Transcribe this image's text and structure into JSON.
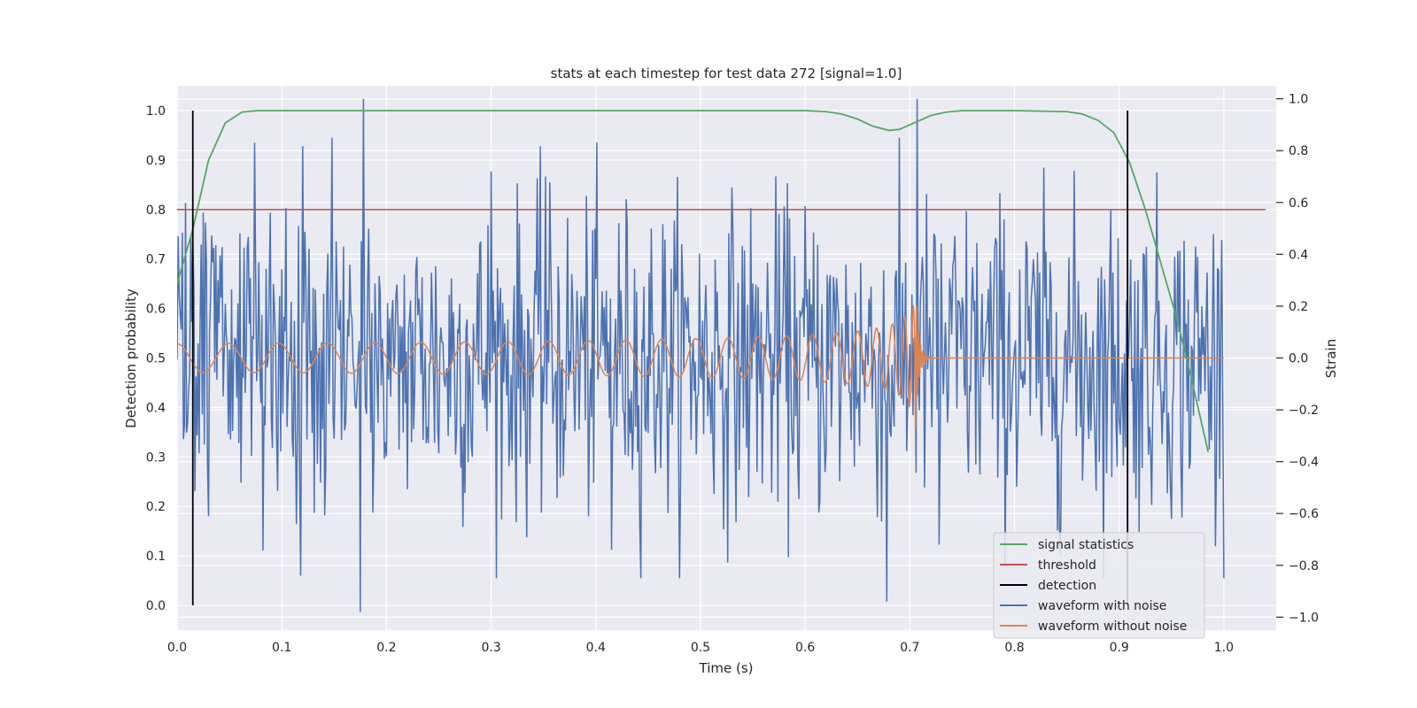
{
  "chart_data": {
    "type": "line",
    "title": "stats at each timestep for test data 272 [signal=1.0]",
    "xlabel": "Time (s)",
    "ylabel": "Detection probability",
    "y2label": "Strain",
    "xlim": [
      0.0,
      1.05
    ],
    "ylim": [
      -0.05,
      1.05
    ],
    "y2lim": [
      -1.05,
      1.05
    ],
    "xticks": [
      "0.0",
      "0.1",
      "0.2",
      "0.3",
      "0.4",
      "0.5",
      "0.6",
      "0.7",
      "0.8",
      "0.9",
      "1.0"
    ],
    "xtick_values": [
      0.0,
      0.1,
      0.2,
      0.3,
      0.4,
      0.5,
      0.6,
      0.7,
      0.8,
      0.9,
      1.0
    ],
    "yticks": [
      "0.0",
      "0.1",
      "0.2",
      "0.3",
      "0.4",
      "0.5",
      "0.6",
      "0.7",
      "0.8",
      "0.9",
      "1.0"
    ],
    "ytick_values": [
      0.0,
      0.1,
      0.2,
      0.3,
      0.4,
      0.5,
      0.6,
      0.7,
      0.8,
      0.9,
      1.0
    ],
    "y2ticks": [
      "−1.0",
      "−0.8",
      "−0.6",
      "−0.4",
      "−0.2",
      "0.0",
      "0.2",
      "0.4",
      "0.6",
      "0.8",
      "1.0"
    ],
    "y2tick_values": [
      -1.0,
      -0.8,
      -0.6,
      -0.4,
      -0.2,
      0.0,
      0.2,
      0.4,
      0.6,
      0.8,
      1.0
    ],
    "grid": true,
    "legend_position": "lower-right",
    "colors": {
      "signal": "#55a868",
      "threshold": "#c44e52",
      "detection": "#000000",
      "noise": "#4c72b0",
      "clean": "#dd8452",
      "axes_bg": "#eaeaf2",
      "grid": "#ffffff"
    },
    "series": [
      {
        "name": "signal statistics",
        "axis": "left",
        "x": [
          0.0,
          0.015,
          0.03,
          0.046,
          0.062,
          0.077,
          0.1,
          0.2,
          0.3,
          0.4,
          0.5,
          0.6,
          0.62,
          0.635,
          0.65,
          0.665,
          0.68,
          0.69,
          0.705,
          0.72,
          0.735,
          0.75,
          0.77,
          0.8,
          0.85,
          0.865,
          0.88,
          0.895,
          0.91,
          0.925,
          0.94,
          0.955,
          0.97,
          0.985
        ],
        "y": [
          0.65,
          0.76,
          0.9,
          0.975,
          0.997,
          1.0,
          1.0,
          1.0,
          1.0,
          1.0,
          1.0,
          1.0,
          0.998,
          0.993,
          0.983,
          0.968,
          0.96,
          0.962,
          0.976,
          0.99,
          0.997,
          1.0,
          1.0,
          1.0,
          0.998,
          0.993,
          0.98,
          0.955,
          0.895,
          0.8,
          0.69,
          0.58,
          0.45,
          0.31
        ]
      },
      {
        "name": "threshold",
        "axis": "left",
        "x": [
          0.0,
          1.04
        ],
        "y": [
          0.8,
          0.8
        ]
      },
      {
        "name": "detection",
        "axis": "left",
        "type": "vlines",
        "x": [
          0.015,
          0.908
        ],
        "ymin": 0.0,
        "ymax": 1.0
      },
      {
        "name": "waveform with noise",
        "axis": "right",
        "x_start": 0.0,
        "x_end": 1.0,
        "points": 1000,
        "amplitude": 0.3,
        "seed": 272,
        "peaks": [
          {
            "x": 0.015,
            "y": 0.45
          },
          {
            "x": 0.074,
            "y": 0.83
          },
          {
            "x": 0.118,
            "y": -0.84
          },
          {
            "x": 0.148,
            "y": 0.85
          },
          {
            "x": 0.175,
            "y": -0.98
          },
          {
            "x": 0.178,
            "y": 1.0
          },
          {
            "x": 0.3,
            "y": 0.72
          },
          {
            "x": 0.352,
            "y": 0.7
          },
          {
            "x": 0.415,
            "y": -0.74
          },
          {
            "x": 0.678,
            "y": -0.94
          },
          {
            "x": 0.707,
            "y": 1.0
          },
          {
            "x": 0.728,
            "y": -0.72
          }
        ]
      },
      {
        "name": "waveform without noise",
        "axis": "right",
        "x_start": 0.0,
        "x_end": 1.0,
        "f0": 20,
        "merger_time": 0.705,
        "amplitude_start": 0.055,
        "amplitude_peak": 0.32,
        "ringdown": 0.003
      }
    ]
  }
}
